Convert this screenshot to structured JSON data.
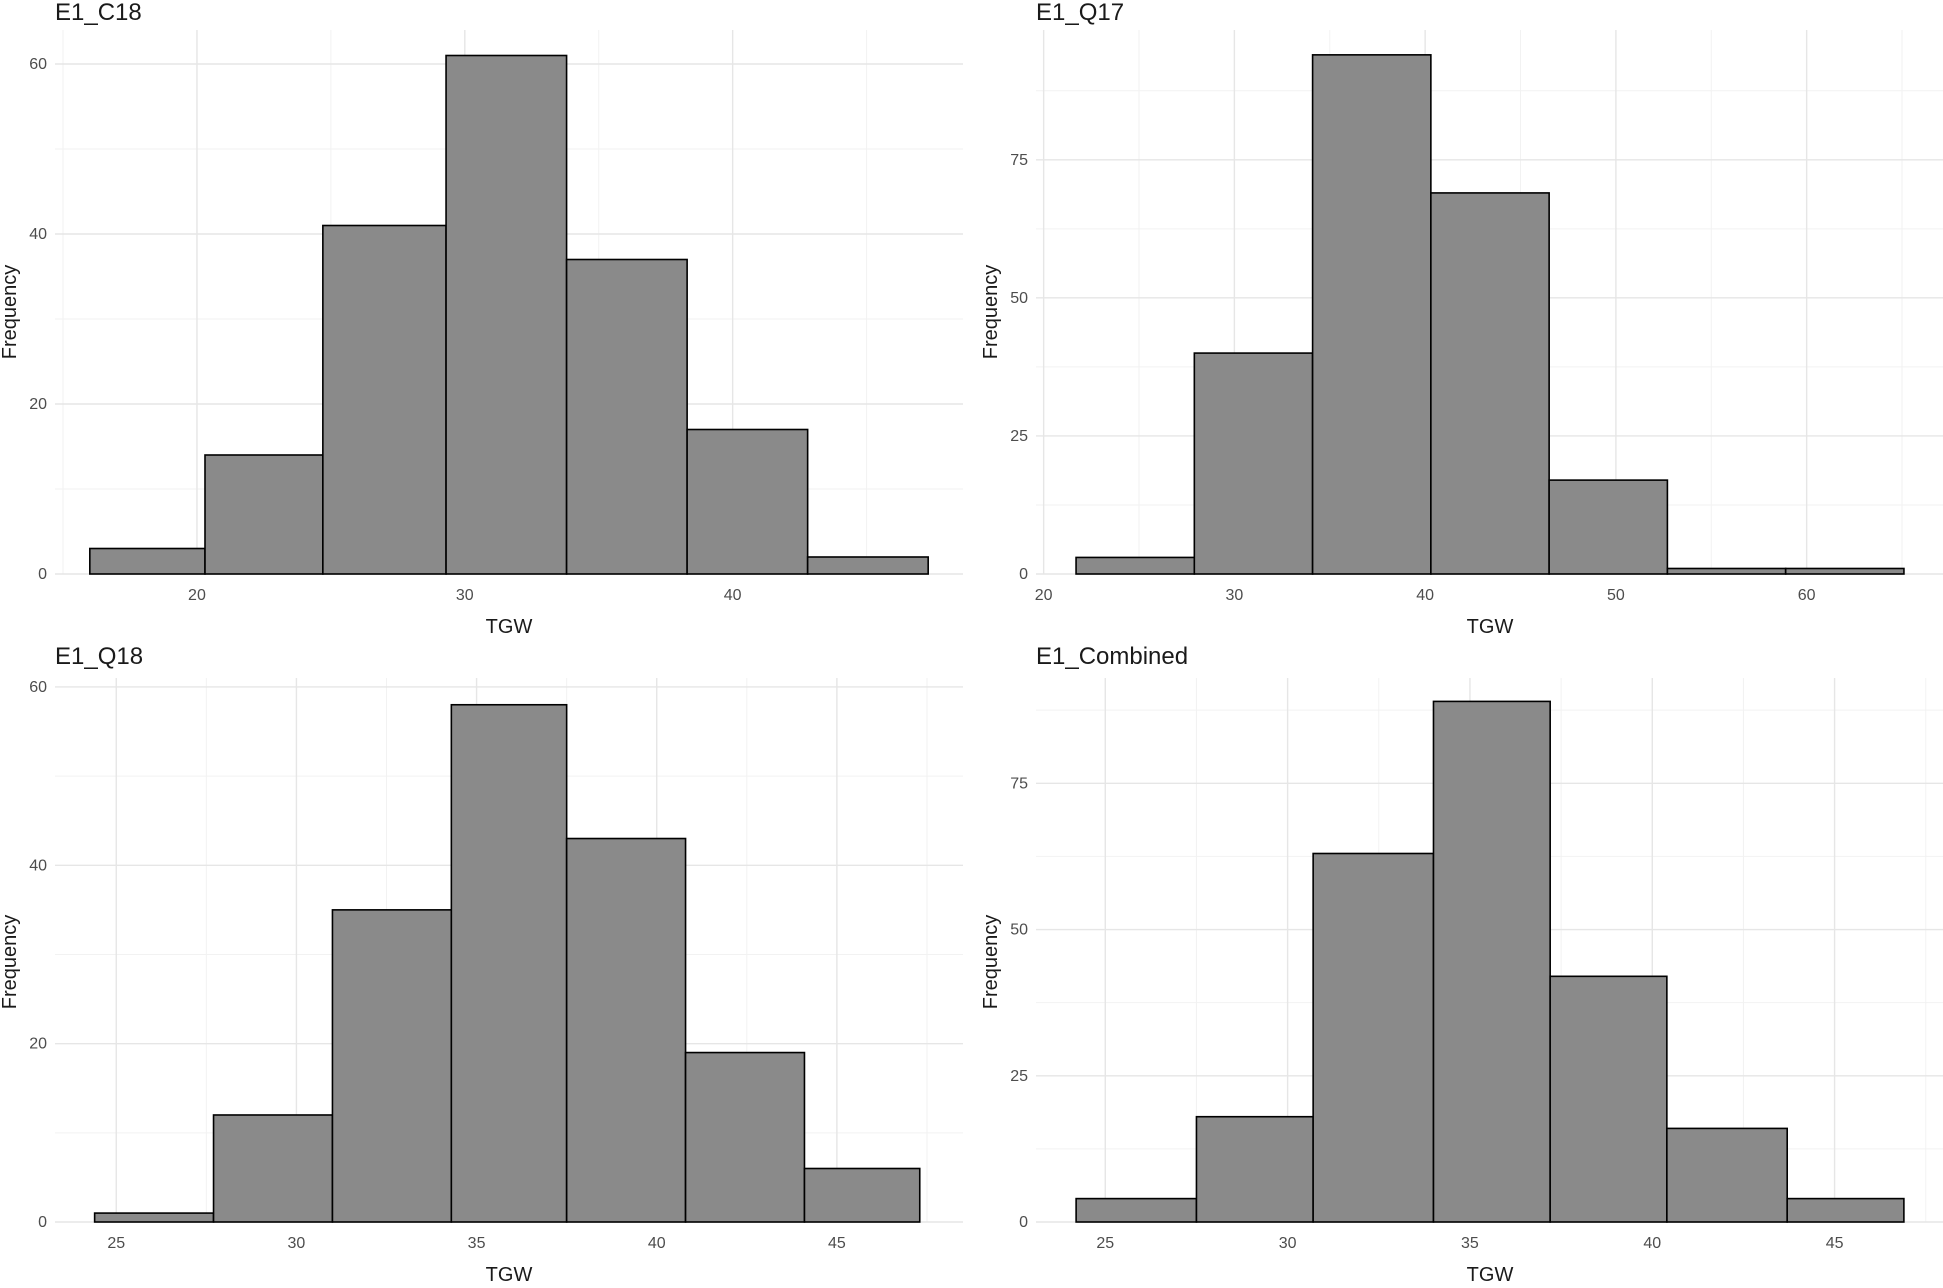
{
  "chart_data": [
    {
      "type": "histogram",
      "title": "E1_C18",
      "xlabel": "TGW",
      "ylabel": "Frequency",
      "bin_edges": [
        16.0,
        20.3,
        24.7,
        29.3,
        33.8,
        38.3,
        42.8,
        47.3
      ],
      "values": [
        3,
        14,
        41,
        61,
        37,
        17,
        2
      ],
      "xlim": [
        14.7,
        48.6
      ],
      "ylim": [
        0,
        64
      ],
      "x_ticks": [
        20,
        30,
        40
      ],
      "y_ticks": [
        0,
        20,
        40,
        60
      ],
      "grid": true
    },
    {
      "type": "histogram",
      "title": "E1_Q17",
      "xlabel": "TGW",
      "ylabel": "Frequency",
      "bin_edges": [
        21.7,
        27.9,
        34.1,
        40.3,
        46.5,
        52.7,
        58.9,
        65.1
      ],
      "values": [
        3,
        40,
        94,
        69,
        17,
        1,
        1
      ],
      "xlim": [
        19.6,
        67.2
      ],
      "ylim": [
        0,
        98.5
      ],
      "x_ticks": [
        20,
        30,
        40,
        50,
        60
      ],
      "y_ticks": [
        0,
        25,
        50,
        75
      ],
      "grid": true
    },
    {
      "type": "histogram",
      "title": "E1_Q18",
      "xlabel": "TGW",
      "ylabel": "Frequency",
      "bin_edges": [
        24.4,
        27.7,
        31.0,
        34.3,
        37.5,
        40.8,
        44.1,
        47.3
      ],
      "values": [
        1,
        12,
        35,
        58,
        43,
        19,
        6
      ],
      "xlim": [
        23.3,
        48.5
      ],
      "ylim": [
        0,
        61
      ],
      "x_ticks": [
        25,
        30,
        35,
        40,
        45
      ],
      "y_ticks": [
        0,
        20,
        40,
        60
      ],
      "grid": true
    },
    {
      "type": "histogram",
      "title": "E1_Combined",
      "xlabel": "TGW",
      "ylabel": "Frequency",
      "bin_edges": [
        24.2,
        27.5,
        30.7,
        34.0,
        37.2,
        40.4,
        43.7,
        46.9
      ],
      "values": [
        4,
        18,
        63,
        89,
        42,
        16,
        4
      ],
      "xlim": [
        23.1,
        48.0
      ],
      "ylim": [
        0,
        93
      ],
      "x_ticks": [
        25,
        30,
        35,
        40,
        45
      ],
      "y_ticks": [
        0,
        25,
        50,
        75
      ],
      "grid": true
    }
  ],
  "colors": {
    "bar_fill": "#8a8a8a",
    "bar_stroke": "#000000",
    "grid_major": "#e6e6e6",
    "grid_minor": "#f2f2f2"
  }
}
